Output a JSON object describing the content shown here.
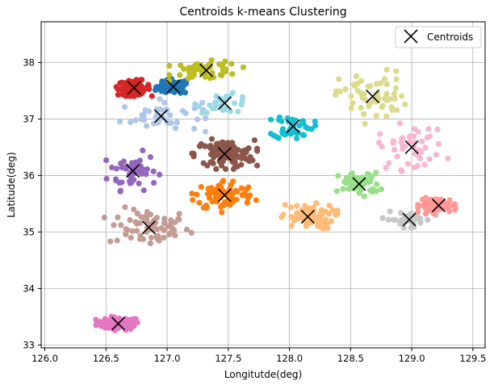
{
  "chart_data": {
    "type": "scatter",
    "title": "Centroids k-means Clustering",
    "xlabel": "Longitutde(deg)",
    "ylabel": "Latitude(deg)",
    "xlim": [
      125.97,
      129.6
    ],
    "ylim": [
      32.95,
      38.72
    ],
    "xticks": [
      126.0,
      126.5,
      127.0,
      127.5,
      128.0,
      128.5,
      129.0,
      129.5
    ],
    "xtick_labels": [
      "126.0",
      "126.5",
      "127.0",
      "127.5",
      "128.0",
      "128.5",
      "129.0",
      "129.5"
    ],
    "yticks": [
      33,
      34,
      35,
      36,
      37,
      38
    ],
    "ytick_labels": [
      "33",
      "34",
      "35",
      "36",
      "37",
      "38"
    ],
    "grid": true,
    "legend": {
      "position": "top-right",
      "entries": [
        "Centroids"
      ]
    },
    "centroid_series_name": "Centroids",
    "clusters": [
      {
        "color": "#e377c2",
        "center": [
          126.6,
          33.38
        ],
        "spread": [
          0.16,
          0.1
        ],
        "n": 75
      },
      {
        "color": "#c49c94",
        "center": [
          126.85,
          35.08
        ],
        "spread": [
          0.3,
          0.3
        ],
        "n": 70
      },
      {
        "color": "#9467bd",
        "center": [
          126.72,
          36.08
        ],
        "spread": [
          0.18,
          0.3
        ],
        "n": 50
      },
      {
        "color": "#aec7e8",
        "center": [
          126.95,
          37.05
        ],
        "spread": [
          0.3,
          0.25
        ],
        "n": 45
      },
      {
        "color": "#d62728",
        "center": [
          126.73,
          37.55
        ],
        "spread": [
          0.12,
          0.12
        ],
        "n": 90
      },
      {
        "color": "#1f77b4",
        "center": [
          127.05,
          37.57
        ],
        "spread": [
          0.12,
          0.12
        ],
        "n": 90
      },
      {
        "color": "#bcbd22",
        "center": [
          127.32,
          37.86
        ],
        "spread": [
          0.25,
          0.15
        ],
        "n": 55
      },
      {
        "color": "#9edae5",
        "center": [
          127.47,
          37.28
        ],
        "spread": [
          0.2,
          0.15
        ],
        "n": 30
      },
      {
        "color": "#8c564b",
        "center": [
          127.47,
          36.38
        ],
        "spread": [
          0.22,
          0.22
        ],
        "n": 110
      },
      {
        "color": "#ff7f0e",
        "center": [
          127.47,
          35.65
        ],
        "spread": [
          0.22,
          0.25
        ],
        "n": 80
      },
      {
        "color": "#17becf",
        "center": [
          128.03,
          36.87
        ],
        "spread": [
          0.15,
          0.2
        ],
        "n": 45
      },
      {
        "color": "#ffbb78",
        "center": [
          128.15,
          35.27
        ],
        "spread": [
          0.2,
          0.2
        ],
        "n": 70
      },
      {
        "color": "#dbdb8d",
        "center": [
          128.68,
          37.4
        ],
        "spread": [
          0.25,
          0.4
        ],
        "n": 60
      },
      {
        "color": "#98df8a",
        "center": [
          128.57,
          35.85
        ],
        "spread": [
          0.15,
          0.18
        ],
        "n": 60
      },
      {
        "color": "#f7b6d2",
        "center": [
          129.0,
          36.5
        ],
        "spread": [
          0.25,
          0.35
        ],
        "n": 45
      },
      {
        "color": "#c7c7c7",
        "center": [
          128.98,
          35.22
        ],
        "spread": [
          0.18,
          0.12
        ],
        "n": 40
      },
      {
        "color": "#ff9896",
        "center": [
          129.22,
          35.47
        ],
        "spread": [
          0.14,
          0.12
        ],
        "n": 65
      }
    ],
    "centroids": [
      {
        "x": 126.6,
        "y": 33.38
      },
      {
        "x": 126.85,
        "y": 35.08
      },
      {
        "x": 126.72,
        "y": 36.08
      },
      {
        "x": 126.95,
        "y": 37.05
      },
      {
        "x": 126.73,
        "y": 37.55
      },
      {
        "x": 127.05,
        "y": 37.57
      },
      {
        "x": 127.32,
        "y": 37.86
      },
      {
        "x": 127.47,
        "y": 37.28
      },
      {
        "x": 127.47,
        "y": 36.38
      },
      {
        "x": 127.47,
        "y": 35.65
      },
      {
        "x": 128.03,
        "y": 36.87
      },
      {
        "x": 128.15,
        "y": 35.27
      },
      {
        "x": 128.68,
        "y": 37.4
      },
      {
        "x": 128.57,
        "y": 35.85
      },
      {
        "x": 129.0,
        "y": 36.5
      },
      {
        "x": 128.98,
        "y": 35.22
      },
      {
        "x": 129.22,
        "y": 35.47
      }
    ]
  }
}
